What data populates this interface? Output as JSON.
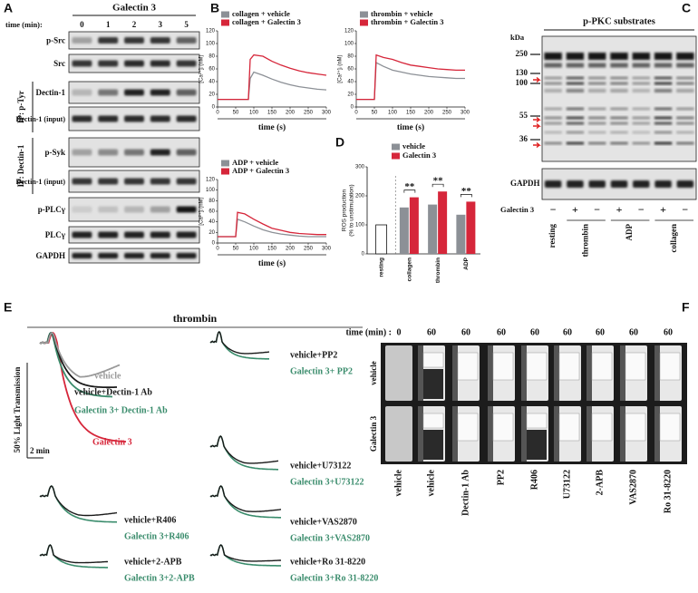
{
  "panel_labels": [
    "A",
    "B",
    "C",
    "D",
    "E",
    "F"
  ],
  "panel_a": {
    "title": "Galectin 3",
    "time_label": "time (min):",
    "times": [
      0,
      1,
      2,
      3,
      5
    ],
    "rows": [
      "p-Src",
      "Src",
      "Dectin-1",
      "Dectin-1 (input)",
      "p-Syk",
      "Dectin-1 (input)",
      "p-PLCγ",
      "PLCγ",
      "GAPDH"
    ],
    "ip_labels": [
      "IP: p-Tyr",
      "IP: Dectin-1"
    ]
  },
  "chart_data": [
    {
      "type": "line",
      "x_label": "time (s)",
      "y_label": "[Ca²⁺]ᵢ (nM)",
      "xlim": [
        0,
        300
      ],
      "xticks": [
        0,
        50,
        100,
        150,
        200,
        250,
        300
      ],
      "ylim": [
        0,
        120
      ],
      "yticks": [
        0,
        20,
        40,
        60,
        80,
        100,
        120
      ],
      "x": [
        0,
        25,
        50,
        75,
        85,
        90,
        100,
        125,
        150,
        175,
        200,
        225,
        250,
        275,
        300
      ],
      "series": [
        {
          "name": "collagen + vehicle",
          "color": "#8c9096",
          "values": [
            12,
            12,
            12,
            12,
            12,
            45,
            55,
            50,
            44,
            39,
            35,
            32,
            30,
            28,
            27
          ]
        },
        {
          "name": "collagen + Galectin 3",
          "color": "#d6263a",
          "values": [
            12,
            12,
            12,
            12,
            12,
            75,
            82,
            80,
            72,
            66,
            61,
            57,
            54,
            52,
            50
          ]
        }
      ]
    },
    {
      "type": "line",
      "x_label": "time (s)",
      "y_label": "[Ca²⁺]ᵢ (nM)",
      "xlim": [
        0,
        300
      ],
      "xticks": [
        0,
        50,
        100,
        150,
        200,
        250,
        300
      ],
      "ylim": [
        0,
        120
      ],
      "yticks": [
        0,
        20,
        40,
        60,
        80,
        100,
        120
      ],
      "x": [
        0,
        25,
        45,
        50,
        55,
        75,
        100,
        125,
        150,
        175,
        200,
        225,
        250,
        275,
        300
      ],
      "series": [
        {
          "name": "thrombin + vehicle",
          "color": "#8c9096",
          "values": [
            12,
            12,
            12,
            12,
            70,
            64,
            58,
            55,
            52,
            50,
            48,
            47,
            46,
            45,
            45
          ]
        },
        {
          "name": "thrombin + Galectin 3",
          "color": "#d6263a",
          "values": [
            12,
            12,
            12,
            12,
            82,
            78,
            75,
            70,
            66,
            64,
            62,
            60,
            59,
            58,
            58
          ]
        }
      ]
    },
    {
      "type": "line",
      "x_label": "time (s)",
      "y_label": "[Ca²⁺]ᵢ (nM)",
      "xlim": [
        0,
        300
      ],
      "xticks": [
        0,
        50,
        100,
        150,
        200,
        250,
        300
      ],
      "ylim": [
        0,
        120
      ],
      "yticks": [
        0,
        20,
        40,
        60,
        80,
        100,
        120
      ],
      "x": [
        0,
        25,
        45,
        50,
        55,
        75,
        100,
        125,
        150,
        175,
        200,
        225,
        250,
        275,
        300
      ],
      "series": [
        {
          "name": "ADP + vehicle",
          "color": "#8c9096",
          "values": [
            12,
            12,
            12,
            12,
            45,
            40,
            32,
            25,
            20,
            17,
            15,
            13,
            12,
            12,
            12
          ]
        },
        {
          "name": "ADP + Galectin 3",
          "color": "#d6263a",
          "values": [
            12,
            12,
            12,
            12,
            58,
            55,
            45,
            36,
            28,
            24,
            20,
            18,
            17,
            16,
            16
          ]
        }
      ]
    },
    {
      "type": "bar",
      "y_label": [
        "ROS production",
        "(% to unstimulation)"
      ],
      "ylim": [
        0,
        300
      ],
      "yticks": [
        0,
        100,
        200,
        300
      ],
      "categories": [
        "resting",
        "collagen",
        "thrombin",
        "ADP"
      ],
      "resting": {
        "value": 100,
        "color": "#ffffff"
      },
      "series": [
        {
          "name": "vehicle",
          "color": "#8c9096",
          "values": [
            null,
            160,
            170,
            135
          ]
        },
        {
          "name": "Galectin 3",
          "color": "#d6263a",
          "values": [
            null,
            195,
            215,
            180
          ]
        }
      ],
      "annotations": [
        null,
        "**",
        "**",
        "**"
      ]
    }
  ],
  "panel_c": {
    "title": "p-PKC substrates",
    "kda_label": "kDa",
    "markers": [
      250,
      130,
      100,
      55,
      36
    ],
    "loading_label": "GAPDH",
    "treatment_label": "Galectin 3",
    "signs": [
      "−",
      "+",
      "−",
      "+",
      "−",
      "+",
      "−"
    ],
    "groups": [
      "resting",
      "thrombin",
      "ADP",
      "collagen"
    ]
  },
  "panel_e": {
    "title": "thrombin",
    "scale_y": "50% Light Transmission",
    "scale_x": "2 min",
    "colors": {
      "vehicle": "#1a1a1a",
      "galectin": "#3a8c6c",
      "galectin_alone": "#d6263a",
      "vehicle_alone": "#9a9a9a"
    },
    "main": {
      "vehicle": "vehicle",
      "vehicle_treated": "vehicle+Dectin-1 Ab",
      "galectin_treated": "Galectin 3+ Dectin-1 Ab",
      "galectin": "Galectin 3"
    },
    "pairs": [
      {
        "vehicle": "vehicle+PP2",
        "galectin": "Galectin 3+ PP2"
      },
      {
        "vehicle": "vehicle+U73122",
        "galectin": "Galectin 3+U73122"
      },
      {
        "vehicle": "vehicle+R406",
        "galectin": "Galectin 3+R406"
      },
      {
        "vehicle": "vehicle+VAS2870",
        "galectin": "Galectin 3+VAS2870"
      },
      {
        "vehicle": "vehicle+2-APB",
        "galectin": "Galectin 3+2-APB"
      },
      {
        "vehicle": "vehicle+Ro 31-8220",
        "galectin": "Galectin 3+Ro 31-8220"
      }
    ]
  },
  "panel_f": {
    "time_label": "time (min) :",
    "times": [
      0,
      60,
      60,
      60,
      60,
      60,
      60,
      60,
      60
    ],
    "rows": [
      "vehicle",
      "Galectin 3"
    ],
    "columns": [
      "vehicle",
      "vehicle",
      "Dectin-1 Ab",
      "PP2",
      "R406",
      "U73122",
      "2-APB",
      "VAS2870",
      "Ro 31-8220"
    ]
  }
}
